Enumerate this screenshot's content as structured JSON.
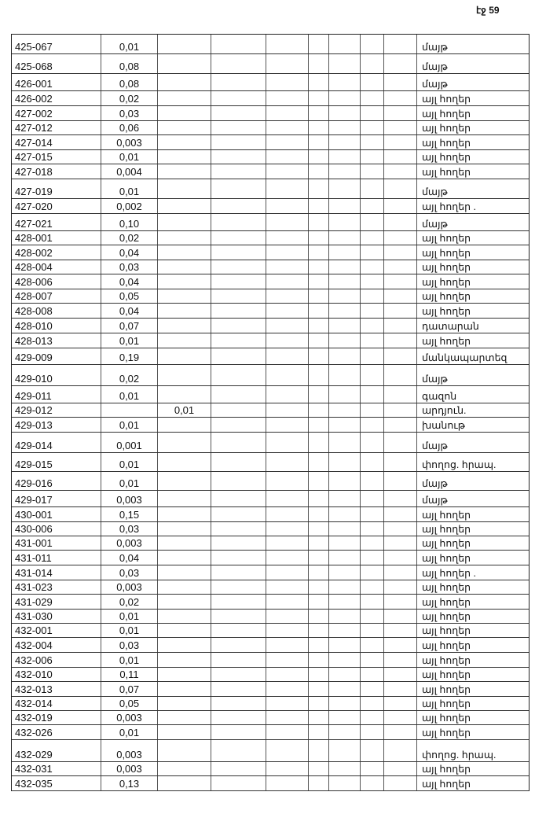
{
  "page_number": "էջ 59",
  "rows": [
    [
      "425-067",
      "0,01",
      "",
      "մայթ"
    ],
    [
      "425-068",
      "0,08",
      "",
      "մայթ"
    ],
    [
      "426-001",
      "0,08",
      "",
      "մայթ"
    ],
    [
      "426-002",
      "0,02",
      "",
      "այլ հողեր"
    ],
    [
      "427-002",
      "0,03",
      "",
      "այլ հողեր"
    ],
    [
      "427-012",
      "0,06",
      "",
      "այլ հողեր"
    ],
    [
      "427-014",
      "0,003",
      "",
      "այլ հողեր"
    ],
    [
      "427-015",
      "0,01",
      "",
      "այլ հողեր"
    ],
    [
      "427-018",
      "0,004",
      "",
      "այլ հողեր"
    ],
    [
      "427-019",
      "0,01",
      "",
      "մայթ"
    ],
    [
      "427-020",
      "0,002",
      "",
      "այլ հողեր ."
    ],
    [
      "427-021",
      "0,10",
      "",
      "մայթ"
    ],
    [
      "428-001",
      "0,02",
      "",
      "այլ հողեր"
    ],
    [
      "428-002",
      "0,04",
      "",
      "այլ հողեր"
    ],
    [
      "428-004",
      "0,03",
      "",
      "այլ հողեր"
    ],
    [
      "428-006",
      "0,04",
      "",
      "այլ հողեր"
    ],
    [
      "428-007",
      "0,05",
      "",
      "այլ հողեր"
    ],
    [
      "428-008",
      "0,04",
      "",
      "այլ հողեր"
    ],
    [
      "428-010",
      "0,07",
      "",
      "դատարան"
    ],
    [
      "428-013",
      "0,01",
      "",
      "այլ հողեր"
    ],
    [
      "429-009",
      "0,19",
      "",
      "մանկապարտեզ"
    ],
    [
      "429-010",
      "0,02",
      "",
      "մայթ"
    ],
    [
      "429-011",
      "0,01",
      "",
      "գազոն"
    ],
    [
      "429-012",
      "",
      "0,01",
      "արդյուն."
    ],
    [
      "429-013",
      "0,01",
      "",
      "խանութ"
    ],
    [
      "429-014",
      "0,001",
      "",
      "մայթ"
    ],
    [
      "429-015",
      "0,01",
      "",
      "փողոց. հրապ."
    ],
    [
      "429-016",
      "0,01",
      "",
      "մայթ"
    ],
    [
      "429-017",
      "0,003",
      "",
      "մայթ"
    ],
    [
      "430-001",
      "0,15",
      "",
      "այլ հողեր"
    ],
    [
      "430-006",
      "0,03",
      "",
      "այլ հողեր"
    ],
    [
      "431-001",
      "0,003",
      "",
      "այլ հողեր"
    ],
    [
      "431-011",
      "0,04",
      "",
      "այլ հողեր"
    ],
    [
      "431-014",
      "0,03",
      "",
      "այլ հողեր ."
    ],
    [
      "431-023",
      "0,003",
      "",
      "այլ հողեր"
    ],
    [
      "431-029",
      "0,02",
      "",
      "այլ հողեր"
    ],
    [
      "431-030",
      "0,01",
      "",
      "այլ հողեր"
    ],
    [
      "432-001",
      "0,01",
      "",
      "այլ հողեր"
    ],
    [
      "432-004",
      "0,03",
      "",
      "այլ հողեր"
    ],
    [
      "432-006",
      "0,01",
      "",
      "այլ հողեր"
    ],
    [
      "432-010",
      "0,11",
      "",
      "այլ հողեր"
    ],
    [
      "432-013",
      "0,07",
      "",
      "այլ հողեր"
    ],
    [
      "432-014",
      "0,05",
      "",
      "այլ հողեր"
    ],
    [
      "432-019",
      "0,003",
      "",
      "այլ հողեր"
    ],
    [
      "432-026",
      "0,01",
      "",
      "այլ հողեր"
    ],
    [
      "432-029",
      "0,003",
      "",
      "փողոց. հրապ."
    ],
    [
      "432-031",
      "0,003",
      "",
      "այլ հողեր"
    ],
    [
      "432-035",
      "0,13",
      "",
      "այլ հողեր"
    ]
  ]
}
